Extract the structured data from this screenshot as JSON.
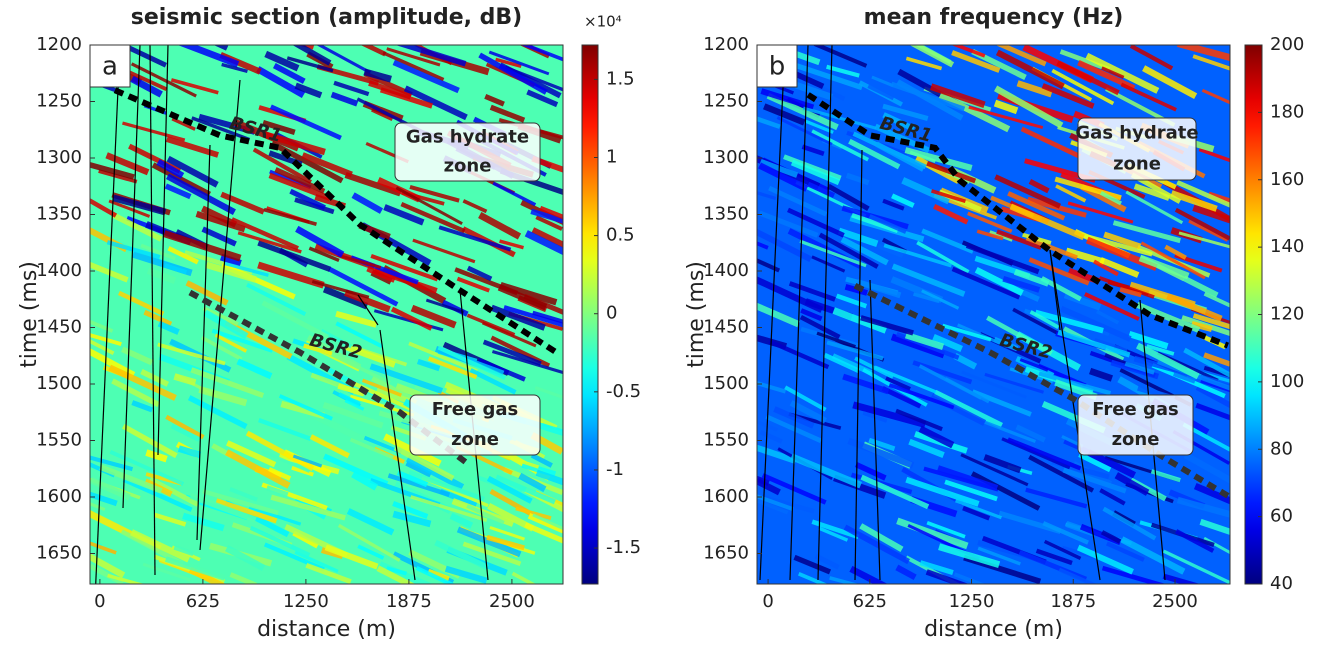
{
  "chart_data": [
    {
      "type": "heatmap",
      "title": "seismic section (amplitude, dB)",
      "panel_label": "a",
      "xlabel": "distance (m)",
      "ylabel": "time (ms)",
      "xlim": [
        -60,
        2810
      ],
      "xticks": [
        0,
        625,
        1250,
        1875,
        2500
      ],
      "ylim": [
        1200,
        1677
      ],
      "yticks": [
        1200,
        1250,
        1300,
        1350,
        1400,
        1450,
        1500,
        1550,
        1600,
        1650
      ],
      "colormap": "jet",
      "colorbar": {
        "clim": [
          -1.73,
          1.72
        ],
        "ticks": [
          -1.5,
          -1,
          -0.5,
          0,
          0.5,
          1,
          1.5
        ],
        "multiplier": "×10⁴"
      },
      "annotations": [
        {
          "lines": [
            "Gas hydrate",
            "zone"
          ]
        },
        {
          "lines": [
            "Free gas",
            "zone"
          ]
        }
      ],
      "boundaries": [
        {
          "label": "BSR1",
          "x": [
            91,
            728,
            1092,
            1578,
            2184,
            2791
          ],
          "y": [
            1240,
            1280,
            1291,
            1359,
            1417,
            1474
          ]
        },
        {
          "label": "BSR2",
          "x": [
            546,
            1214,
            1820,
            2245
          ],
          "y": [
            1419,
            1472,
            1525,
            1572
          ]
        }
      ]
    },
    {
      "type": "heatmap",
      "title": "mean frequency (Hz)",
      "panel_label": "b",
      "xlabel": "distance (m)",
      "ylabel": "time (ms)",
      "xlim": [
        -68,
        2838
      ],
      "xticks": [
        0,
        625,
        1250,
        1875,
        2500
      ],
      "ylim": [
        1200,
        1677
      ],
      "yticks": [
        1200,
        1250,
        1300,
        1350,
        1400,
        1450,
        1500,
        1550,
        1600,
        1650
      ],
      "colormap": "jet",
      "colorbar": {
        "clim": [
          40,
          200
        ],
        "ticks": [
          40,
          60,
          80,
          100,
          120,
          140,
          160,
          180,
          200
        ]
      },
      "annotations": [
        {
          "lines": [
            "Gas hydrate",
            "zone"
          ]
        },
        {
          "lines": [
            "Free gas",
            "zone"
          ]
        }
      ],
      "boundaries": [
        {
          "label": "BSR1",
          "x": [
            246,
            627,
            1026,
            1179,
            1732,
            2346,
            2825
          ],
          "y": [
            1244,
            1280,
            1291,
            1320,
            1382,
            1439,
            1466
          ]
        },
        {
          "label": "BSR2",
          "x": [
            534,
            1364,
            1886,
            2408,
            2825
          ],
          "y": [
            1413,
            1472,
            1514,
            1563,
            1599
          ]
        }
      ]
    }
  ]
}
